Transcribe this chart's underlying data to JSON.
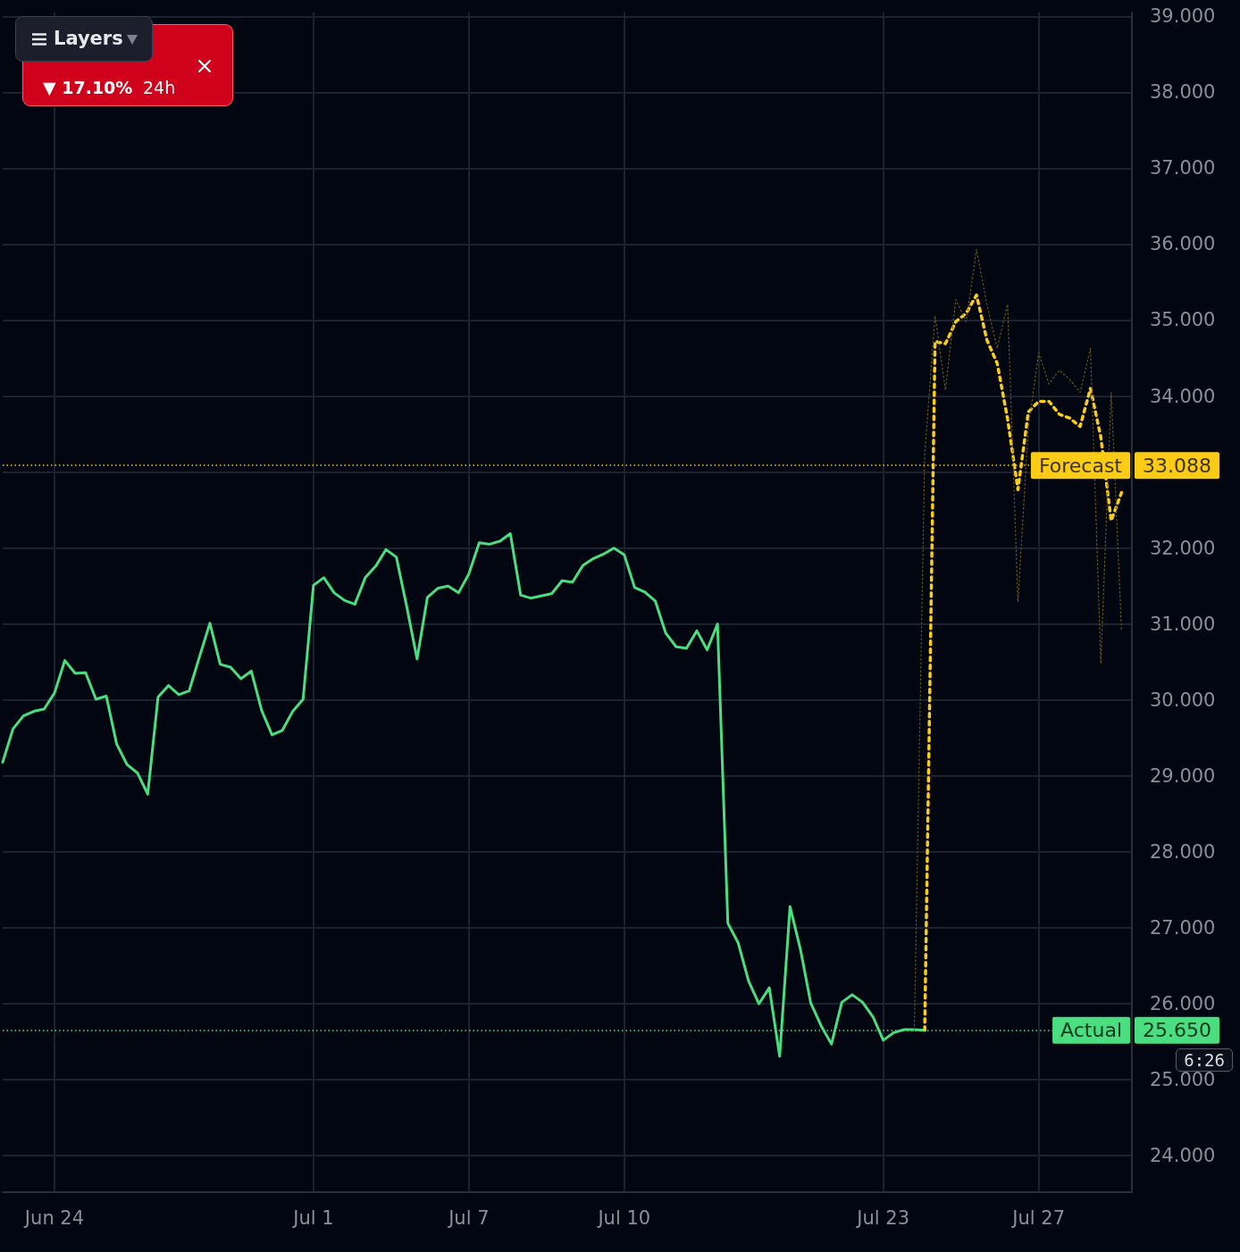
{
  "chart_data": {
    "type": "line",
    "categories": [
      null,
      null,
      null,
      null,
      null,
      "Jun 24",
      null,
      null,
      null,
      null,
      null,
      null,
      null,
      null,
      null,
      null,
      null,
      null,
      null,
      null,
      null,
      null,
      null,
      null,
      null,
      null,
      null,
      null,
      null,
      null,
      "Jul 1",
      null,
      null,
      null,
      null,
      null,
      null,
      null,
      null,
      null,
      null,
      null,
      null,
      null,
      null,
      "Jul 7",
      null,
      null,
      null,
      null,
      null,
      null,
      null,
      null,
      null,
      null,
      null,
      null,
      null,
      null,
      "Jul 10",
      null,
      null,
      null,
      null,
      null,
      null,
      null,
      null,
      null,
      null,
      null,
      null,
      null,
      null,
      null,
      null,
      null,
      null,
      null,
      null,
      null,
      null,
      null,
      null,
      "Jul 23",
      null,
      null,
      null,
      null,
      null,
      null,
      null,
      null,
      null,
      null,
      null,
      null,
      null,
      null,
      "Jul 27",
      null,
      null,
      null,
      null,
      null,
      null,
      null,
      null,
      null
    ],
    "series": [
      {
        "color": "#4ade80",
        "line_style": "solid",
        "values": [
          29.18,
          29.62,
          29.79,
          29.85,
          29.88,
          30.09,
          30.52,
          30.35,
          30.36,
          30.01,
          30.05,
          29.42,
          29.15,
          29.04,
          28.76,
          30.04,
          30.19,
          30.07,
          30.12,
          30.57,
          31.01,
          30.47,
          30.43,
          30.28,
          30.38,
          29.86,
          29.54,
          29.6,
          29.85,
          30.01,
          31.51,
          31.61,
          31.41,
          31.31,
          31.26,
          31.61,
          31.76,
          31.98,
          31.88,
          31.23,
          30.54,
          31.35,
          31.47,
          31.5,
          31.41,
          31.66,
          32.07,
          32.05,
          32.09,
          32.19,
          31.38,
          31.34,
          31.37,
          31.4,
          31.57,
          31.55,
          31.77,
          31.86,
          31.92,
          32.0,
          31.91,
          31.48,
          31.42,
          31.3,
          30.88,
          30.7,
          30.68,
          30.91,
          30.66,
          31.0,
          27.06,
          26.8,
          26.3,
          26.0,
          26.21,
          25.31,
          27.28,
          26.72,
          26.01,
          25.71,
          25.47,
          26.02,
          26.12,
          26.02,
          25.83,
          25.52,
          25.62,
          25.66,
          25.66,
          25.65,
          null,
          null,
          null,
          null,
          null,
          null,
          null,
          null,
          null,
          null,
          null,
          null,
          null,
          null,
          null,
          null,
          null,
          null,
          null,
          null
        ]
      },
      {
        "color": "#facc15",
        "line_style": "dashed",
        "values": [
          null,
          null,
          null,
          null,
          null,
          null,
          null,
          null,
          null,
          null,
          null,
          null,
          null,
          null,
          null,
          null,
          null,
          null,
          null,
          null,
          null,
          null,
          null,
          null,
          null,
          null,
          null,
          null,
          null,
          null,
          null,
          null,
          null,
          null,
          null,
          null,
          null,
          null,
          null,
          null,
          null,
          null,
          null,
          null,
          null,
          null,
          null,
          null,
          null,
          null,
          null,
          null,
          null,
          null,
          null,
          null,
          null,
          null,
          null,
          null,
          null,
          null,
          null,
          null,
          null,
          null,
          null,
          null,
          null,
          null,
          null,
          null,
          null,
          null,
          null,
          null,
          null,
          null,
          null,
          null,
          null,
          null,
          null,
          null,
          null,
          null,
          null,
          null,
          null,
          25.65,
          34.72,
          34.69,
          34.98,
          35.09,
          35.33,
          34.74,
          34.43,
          33.7,
          32.77,
          33.79,
          33.93,
          33.93,
          33.76,
          33.71,
          33.6,
          34.1,
          33.46,
          32.36,
          32.73,
          null
        ]
      },
      {
        "color": "#6b5a14",
        "line_style": "dotted",
        "values": [
          null,
          null,
          null,
          null,
          null,
          null,
          null,
          null,
          null,
          null,
          null,
          null,
          null,
          null,
          null,
          null,
          null,
          null,
          null,
          null,
          null,
          null,
          null,
          null,
          null,
          null,
          null,
          null,
          null,
          null,
          null,
          null,
          null,
          null,
          null,
          null,
          null,
          null,
          null,
          null,
          null,
          null,
          null,
          null,
          null,
          null,
          null,
          null,
          null,
          null,
          null,
          null,
          null,
          null,
          null,
          null,
          null,
          null,
          null,
          null,
          null,
          null,
          null,
          null,
          null,
          null,
          null,
          null,
          null,
          null,
          null,
          null,
          null,
          null,
          null,
          null,
          null,
          null,
          null,
          null,
          null,
          null,
          null,
          null,
          null,
          null,
          null,
          null,
          25.66,
          33.23,
          35.06,
          34.08,
          35.27,
          34.98,
          35.93,
          35.21,
          34.63,
          35.21,
          31.29,
          33.58,
          34.57,
          34.16,
          34.34,
          34.22,
          34.05,
          34.63,
          30.48,
          34.05,
          30.91,
          null
        ]
      }
    ],
    "ylim": [
      23.52,
      39.05
    ],
    "yticks": [
      {
        "value": 24,
        "label": "24.000"
      },
      {
        "value": 25,
        "label": "25.000"
      },
      {
        "value": 26,
        "label": "26.000"
      },
      {
        "value": 27,
        "label": "27.000"
      },
      {
        "value": 28,
        "label": "28.000"
      },
      {
        "value": 29,
        "label": "29.000"
      },
      {
        "value": 30,
        "label": "30.000"
      },
      {
        "value": 31,
        "label": "31.000"
      },
      {
        "value": 32,
        "label": "32.000"
      },
      {
        "value": 33,
        "label": null
      },
      {
        "value": 34,
        "label": "34.000"
      },
      {
        "value": 35,
        "label": "35.000"
      },
      {
        "value": 36,
        "label": "36.000"
      },
      {
        "value": 37,
        "label": "37.000"
      },
      {
        "value": 38,
        "label": "38.000"
      },
      {
        "value": 39,
        "label": "39.000"
      }
    ],
    "ref_lines": [
      {
        "axis": "y",
        "value": 33.088,
        "label": "Forecast",
        "color": "#facc15",
        "line_style": "dotted"
      },
      {
        "axis": "y",
        "value": 25.65,
        "label": "Actual",
        "color": "#4ade80",
        "line_style": "dotted"
      }
    ],
    "annotations": [
      "▼ 17.10%",
      "24h",
      "Layers",
      "6:26",
      "33.088",
      "25.650"
    ],
    "grid": true
  }
}
